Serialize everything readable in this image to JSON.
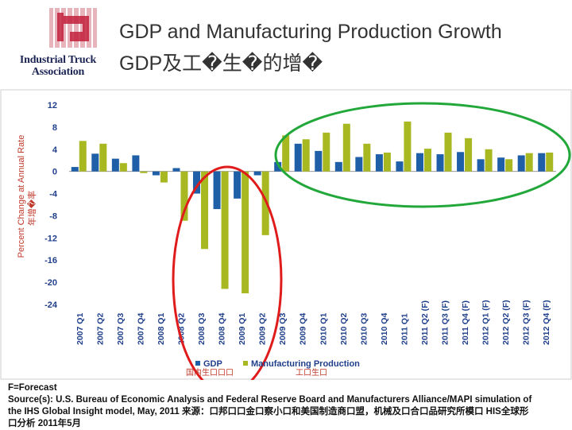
{
  "header": {
    "logo_text": [
      "Industrial Truck",
      "Association"
    ],
    "title_line1": "GDP and Manufacturing Production Growth",
    "title_line2": "GDP及工�生�的增�"
  },
  "colors": {
    "gdp": "#1f5fa8",
    "manufacturing": "#a8b820",
    "red_circle": "#e01b1b",
    "green_circle": "#22a83a",
    "axis_text": "#1f3f8a",
    "ylabel": "#c0392b"
  },
  "chart_data": {
    "type": "bar",
    "ylabel": "Percent Change at Annual Rate",
    "ylabel_cn": "年增�率",
    "ylim": [
      -24,
      12
    ],
    "yticks": [
      12,
      8,
      4,
      0,
      -4,
      -8,
      -12,
      -16,
      -20,
      -24
    ],
    "grid": false,
    "legend_position": "bottom",
    "categories": [
      "2007 Q1",
      "2007 Q2",
      "2007 Q3",
      "2007 Q4",
      "2008 Q1",
      "2008 Q2",
      "2008 Q3",
      "2008 Q4",
      "2009 Q1",
      "2009 Q2",
      "2009 Q3",
      "2009 Q4",
      "2010 Q1",
      "2010 Q2",
      "2010 Q3",
      "2010 Q4",
      "2011 Q1",
      "2011 Q2 (F)",
      "2011 Q3 (F)",
      "2011 Q4 (F)",
      "2012 Q1 (F)",
      "2012 Q2 (F)",
      "2012 Q3 (F)",
      "2012 Q4 (F)"
    ],
    "series": [
      {
        "name": "GDP",
        "name_cn": "国内生口口口",
        "values": [
          0.8,
          3.2,
          2.3,
          2.9,
          -0.7,
          0.6,
          -4.0,
          -6.8,
          -4.9,
          -0.7,
          1.7,
          5.0,
          3.7,
          1.7,
          2.6,
          3.1,
          1.8,
          3.3,
          3.1,
          3.5,
          2.2,
          2.5,
          2.9,
          3.3
        ]
      },
      {
        "name": "Manufacturing Production",
        "name_cn": "工口生口",
        "values": [
          5.5,
          5.0,
          1.5,
          -0.3,
          -2.0,
          -8.9,
          -14.0,
          -21.2,
          -22.0,
          -11.5,
          6.5,
          5.8,
          7.0,
          8.6,
          5.0,
          3.4,
          9.0,
          4.1,
          7.0,
          6.0,
          4.0,
          2.2,
          3.3,
          3.4
        ]
      }
    ]
  },
  "footer": {
    "line1": "F=Forecast",
    "line2": "Source(s): U.S. Bureau of Economic Analysis and Federal Reserve Board and Manufacturers Alliance/MAPI simulation of",
    "line3": "the IHS Global Insight model, May, 2011 来源：口邦口口金口察小口和美国制造商口盟，机械及口合口品研究所模口 HIS全球形",
    "line4": "口分析 2011年5月"
  }
}
